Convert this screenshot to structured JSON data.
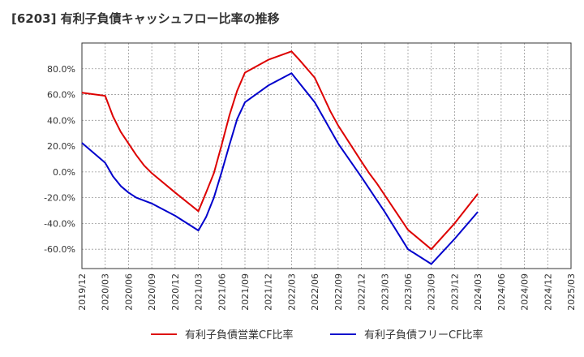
{
  "chart_data": {
    "type": "line",
    "title": "[6203]  有利子負債キャッシュフロー比率の推移",
    "xlabel": "",
    "ylabel": "",
    "ylim": [
      -75,
      100
    ],
    "yticks": [
      80,
      60,
      40,
      20,
      0,
      -20,
      -40,
      -60
    ],
    "ytick_labels": [
      "80.0%",
      "60.0%",
      "40.0%",
      "20.0%",
      "0.0%",
      "-20.0%",
      "-40.0%",
      "-60.0%"
    ],
    "xtick_labels": [
      "2019/12",
      "2020/03",
      "2020/06",
      "2020/09",
      "2020/12",
      "2021/03",
      "2021/06",
      "2021/09",
      "2021/12",
      "2022/03",
      "2022/06",
      "2022/09",
      "2022/12",
      "2023/03",
      "2023/06",
      "2023/09",
      "2023/12",
      "2024/03",
      "2024/06",
      "2024/09",
      "2024/12",
      "2025/03"
    ],
    "grid": true,
    "legend_position": "bottom",
    "series": [
      {
        "name": "有利子負債営業CF比率",
        "color": "#dd0000",
        "points": [
          [
            "2019/12",
            61.5
          ],
          [
            "2020/03",
            59
          ],
          [
            "2020/04",
            43
          ],
          [
            "2020/05",
            31
          ],
          [
            "2020/07",
            13
          ],
          [
            "2020/08",
            5
          ],
          [
            "2020/09",
            -1
          ],
          [
            "2020/12",
            -16
          ],
          [
            "2021/03",
            -30.5
          ],
          [
            "2021/04",
            -16
          ],
          [
            "2021/05",
            -1
          ],
          [
            "2021/06",
            21
          ],
          [
            "2021/07",
            44
          ],
          [
            "2021/08",
            63
          ],
          [
            "2021/09",
            77
          ],
          [
            "2021/12",
            87
          ],
          [
            "2022/03",
            93.5
          ],
          [
            "2022/04",
            87
          ],
          [
            "2022/05",
            80
          ],
          [
            "2022/06",
            73
          ],
          [
            "2022/07",
            60
          ],
          [
            "2022/08",
            47
          ],
          [
            "2022/09",
            36
          ],
          [
            "2022/12",
            8
          ],
          [
            "2023/01",
            -1
          ],
          [
            "2023/02",
            -9
          ],
          [
            "2023/03",
            -18
          ],
          [
            "2023/06",
            -45
          ],
          [
            "2023/09",
            -60
          ],
          [
            "2023/12",
            -40
          ],
          [
            "2024/03",
            -17
          ]
        ]
      },
      {
        "name": "有利子負債フリーCF比率",
        "color": "#0000cc",
        "points": [
          [
            "2019/12",
            22.5
          ],
          [
            "2020/03",
            7
          ],
          [
            "2020/04",
            -3.5
          ],
          [
            "2020/05",
            -11
          ],
          [
            "2020/06",
            -16
          ],
          [
            "2020/07",
            -20
          ],
          [
            "2020/09",
            -24.5
          ],
          [
            "2020/12",
            -34
          ],
          [
            "2021/03",
            -45.5
          ],
          [
            "2021/04",
            -35
          ],
          [
            "2021/05",
            -20
          ],
          [
            "2021/06",
            0
          ],
          [
            "2021/07",
            21
          ],
          [
            "2021/08",
            41
          ],
          [
            "2021/09",
            54
          ],
          [
            "2021/12",
            67
          ],
          [
            "2022/03",
            76.5
          ],
          [
            "2022/06",
            54
          ],
          [
            "2022/09",
            22
          ],
          [
            "2022/12",
            -4
          ],
          [
            "2023/03",
            -31
          ],
          [
            "2023/06",
            -60
          ],
          [
            "2023/09",
            -71.5
          ],
          [
            "2023/12",
            -52
          ],
          [
            "2024/03",
            -31
          ]
        ]
      }
    ]
  }
}
